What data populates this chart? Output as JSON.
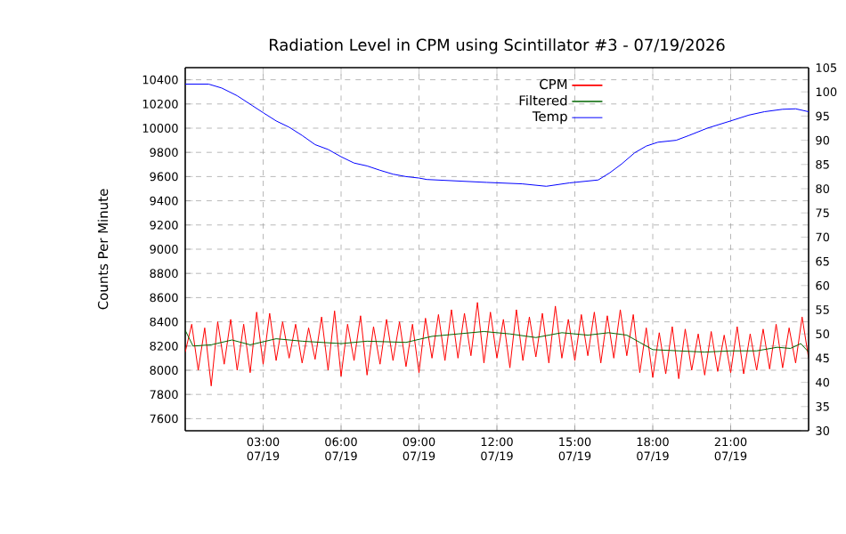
{
  "chart_data": {
    "type": "line",
    "title": "Radiation Level in CPM using Scintillator #3 - 07/19/2026",
    "ylabel": "Counts Per Minute",
    "xlim": [
      "2026-07-19T00:00",
      "2026-07-20T00:00"
    ],
    "ylim": [
      7500,
      10500
    ],
    "y2lim": [
      30,
      105
    ],
    "xticks": [
      {
        "value": "2026-07-19T03:00",
        "label": "03:00 07/19"
      },
      {
        "value": "2026-07-19T06:00",
        "label": "06:00 07/19"
      },
      {
        "value": "2026-07-19T09:00",
        "label": "09:00 07/19"
      },
      {
        "value": "2026-07-19T12:00",
        "label": "12:00 07/19"
      },
      {
        "value": "2026-07-19T15:00",
        "label": "15:00 07/19"
      },
      {
        "value": "2026-07-19T18:00",
        "label": "18:00 07/19"
      },
      {
        "value": "2026-07-19T21:00",
        "label": "21:00 07/19"
      }
    ],
    "yticks": [
      7600,
      7800,
      8000,
      8200,
      8400,
      8600,
      8800,
      9000,
      9200,
      9400,
      9600,
      9800,
      10000,
      10200,
      10400
    ],
    "y2ticks": [
      30,
      35,
      40,
      45,
      50,
      55,
      60,
      65,
      70,
      75,
      80,
      85,
      90,
      95,
      100,
      105
    ],
    "grid": true,
    "legend": "top right",
    "line_style": "solid",
    "series": [
      {
        "name": "CPM",
        "color": "#ff0000",
        "x": [
          "2026-07-19T00:00",
          "2026-07-19T00:15",
          "2026-07-19T00:30",
          "2026-07-19T00:45",
          "2026-07-19T01:00",
          "2026-07-19T01:15",
          "2026-07-19T01:30",
          "2026-07-19T01:45",
          "2026-07-19T02:00",
          "2026-07-19T02:15",
          "2026-07-19T02:30",
          "2026-07-19T02:45",
          "2026-07-19T03:00",
          "2026-07-19T03:15",
          "2026-07-19T03:30",
          "2026-07-19T03:45",
          "2026-07-19T04:00",
          "2026-07-19T04:15",
          "2026-07-19T04:30",
          "2026-07-19T04:45",
          "2026-07-19T05:00",
          "2026-07-19T05:15",
          "2026-07-19T05:30",
          "2026-07-19T05:45",
          "2026-07-19T06:00",
          "2026-07-19T06:15",
          "2026-07-19T06:30",
          "2026-07-19T06:45",
          "2026-07-19T07:00",
          "2026-07-19T07:15",
          "2026-07-19T07:30",
          "2026-07-19T07:45",
          "2026-07-19T08:00",
          "2026-07-19T08:15",
          "2026-07-19T08:30",
          "2026-07-19T08:45",
          "2026-07-19T09:00",
          "2026-07-19T09:15",
          "2026-07-19T09:30",
          "2026-07-19T09:45",
          "2026-07-19T10:00",
          "2026-07-19T10:15",
          "2026-07-19T10:30",
          "2026-07-19T10:45",
          "2026-07-19T11:00",
          "2026-07-19T11:15",
          "2026-07-19T11:30",
          "2026-07-19T11:45",
          "2026-07-19T12:00",
          "2026-07-19T12:15",
          "2026-07-19T12:30",
          "2026-07-19T12:45",
          "2026-07-19T13:00",
          "2026-07-19T13:15",
          "2026-07-19T13:30",
          "2026-07-19T13:45",
          "2026-07-19T14:00",
          "2026-07-19T14:15",
          "2026-07-19T14:30",
          "2026-07-19T14:45",
          "2026-07-19T15:00",
          "2026-07-19T15:15",
          "2026-07-19T15:30",
          "2026-07-19T15:45",
          "2026-07-19T16:00",
          "2026-07-19T16:15",
          "2026-07-19T16:30",
          "2026-07-19T16:45",
          "2026-07-19T17:00",
          "2026-07-19T17:15",
          "2026-07-19T17:30",
          "2026-07-19T17:45",
          "2026-07-19T18:00",
          "2026-07-19T18:15",
          "2026-07-19T18:30",
          "2026-07-19T18:45",
          "2026-07-19T19:00",
          "2026-07-19T19:15",
          "2026-07-19T19:30",
          "2026-07-19T19:45",
          "2026-07-19T20:00",
          "2026-07-19T20:15",
          "2026-07-19T20:30",
          "2026-07-19T20:45",
          "2026-07-19T21:00",
          "2026-07-19T21:15",
          "2026-07-19T21:30",
          "2026-07-19T21:45",
          "2026-07-19T22:00",
          "2026-07-19T22:15",
          "2026-07-19T22:30",
          "2026-07-19T22:45",
          "2026-07-19T23:00",
          "2026-07-19T23:15",
          "2026-07-19T23:30",
          "2026-07-19T23:45",
          "2026-07-20T00:00"
        ],
        "values": [
          8150,
          8380,
          8000,
          8350,
          7870,
          8400,
          8050,
          8420,
          8000,
          8380,
          7980,
          8480,
          8050,
          8470,
          8080,
          8400,
          8100,
          8380,
          8060,
          8350,
          8090,
          8440,
          8000,
          8490,
          7950,
          8380,
          8080,
          8450,
          7960,
          8360,
          8050,
          8420,
          8080,
          8400,
          8030,
          8380,
          7980,
          8430,
          8100,
          8460,
          8080,
          8500,
          8100,
          8470,
          8120,
          8560,
          8060,
          8480,
          8100,
          8420,
          8020,
          8500,
          8080,
          8440,
          8110,
          8470,
          8060,
          8530,
          8100,
          8420,
          8080,
          8460,
          8120,
          8480,
          8060,
          8450,
          8100,
          8500,
          8120,
          8460,
          7980,
          8350,
          7940,
          8310,
          7970,
          8360,
          7930,
          8340,
          8000,
          8300,
          7960,
          8320,
          7990,
          8290,
          7980,
          8360,
          7970,
          8300,
          8000,
          8340,
          8010,
          8380,
          8020,
          8350,
          8060,
          8440,
          8100
        ]
      },
      {
        "name": "Filtered",
        "color": "#006400",
        "x": [
          "2026-07-19T00:00",
          "2026-07-19T00:18",
          "2026-07-19T01:00",
          "2026-07-19T01:48",
          "2026-07-19T02:30",
          "2026-07-19T03:30",
          "2026-07-19T04:30",
          "2026-07-19T06:00",
          "2026-07-19T07:00",
          "2026-07-19T08:30",
          "2026-07-19T09:30",
          "2026-07-19T10:30",
          "2026-07-19T11:30",
          "2026-07-19T12:30",
          "2026-07-19T13:30",
          "2026-07-19T14:30",
          "2026-07-19T15:30",
          "2026-07-19T16:18",
          "2026-07-19T17:00",
          "2026-07-19T17:30",
          "2026-07-19T18:00",
          "2026-07-19T19:00",
          "2026-07-19T20:00",
          "2026-07-19T21:00",
          "2026-07-19T22:00",
          "2026-07-19T22:48",
          "2026-07-19T23:18",
          "2026-07-19T23:42",
          "2026-07-20T00:00"
        ],
        "values": [
          8330,
          8200,
          8210,
          8250,
          8210,
          8260,
          8240,
          8220,
          8240,
          8230,
          8280,
          8300,
          8320,
          8300,
          8270,
          8310,
          8290,
          8310,
          8290,
          8230,
          8170,
          8160,
          8150,
          8160,
          8160,
          8190,
          8180,
          8220,
          8150
        ]
      },
      {
        "name": "Temp",
        "color": "#0000ff",
        "axis": "y2",
        "x": [
          "2026-07-19T00:00",
          "2026-07-19T00:54",
          "2026-07-19T01:24",
          "2026-07-19T02:00",
          "2026-07-19T02:36",
          "2026-07-19T03:00",
          "2026-07-19T03:30",
          "2026-07-19T04:00",
          "2026-07-19T04:30",
          "2026-07-19T05:00",
          "2026-07-19T05:30",
          "2026-07-19T06:00",
          "2026-07-19T06:30",
          "2026-07-19T07:00",
          "2026-07-19T07:30",
          "2026-07-19T08:00",
          "2026-07-19T08:30",
          "2026-07-19T09:00",
          "2026-07-19T09:18",
          "2026-07-19T11:36",
          "2026-07-19T12:58",
          "2026-07-19T13:54",
          "2026-07-19T14:48",
          "2026-07-19T15:54",
          "2026-07-19T16:21",
          "2026-07-19T16:48",
          "2026-07-19T17:18",
          "2026-07-19T17:45",
          "2026-07-19T18:12",
          "2026-07-19T18:54",
          "2026-07-19T19:24",
          "2026-07-19T20:06",
          "2026-07-19T21:00",
          "2026-07-19T21:42",
          "2026-07-19T22:18",
          "2026-07-19T23:00",
          "2026-07-19T23:30",
          "2026-07-20T00:00"
        ],
        "values": [
          101.6,
          101.6,
          100.8,
          99.2,
          97.1,
          95.7,
          94.0,
          92.7,
          91.0,
          89.1,
          88.1,
          86.6,
          85.3,
          84.7,
          83.8,
          83.0,
          82.5,
          82.2,
          81.9,
          81.3,
          81.0,
          80.5,
          81.2,
          81.8,
          83.3,
          85.1,
          87.4,
          88.8,
          89.6,
          90.0,
          91.0,
          92.5,
          94.0,
          95.2,
          95.9,
          96.4,
          96.5,
          95.9
        ]
      }
    ]
  }
}
